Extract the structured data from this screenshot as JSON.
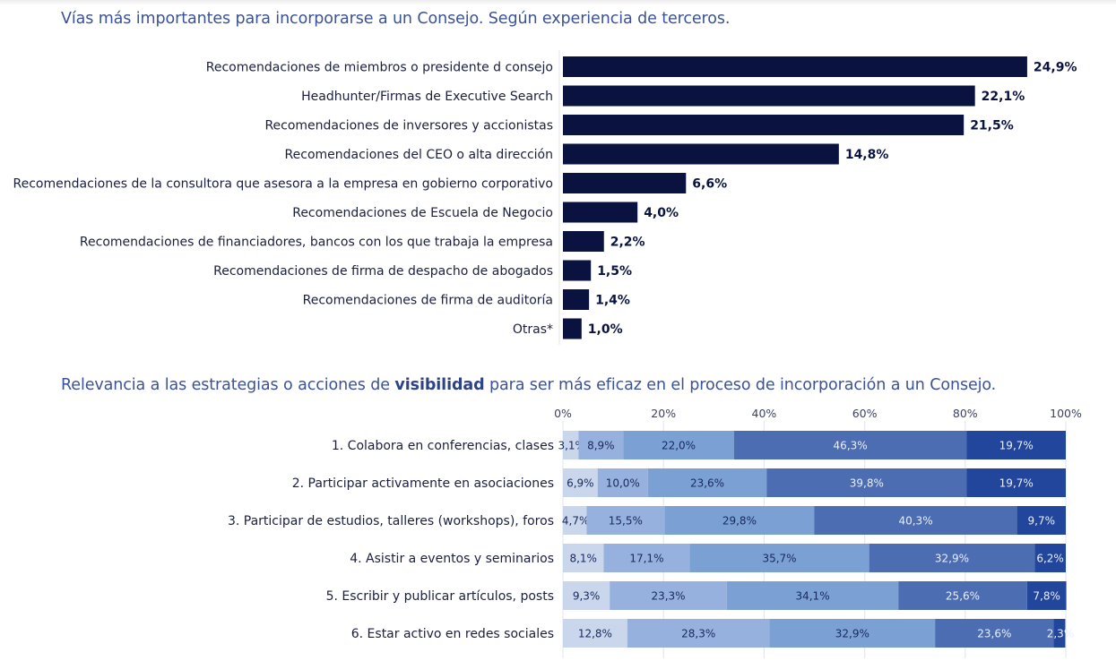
{
  "chart_data": [
    {
      "type": "bar",
      "orientation": "horizontal",
      "title": "Vías más importantes para incorporarse a un Consejo. Según experiencia de terceros.",
      "categories": [
        "Recomendaciones de miembros o presidente d consejo",
        "Headhunter/Firmas de Executive Search",
        "Recomendaciones de inversores y accionistas",
        "Recomendaciones del CEO o alta dirección",
        "Recomendaciones de la consultora que asesora a la empresa en gobierno corporativo",
        "Recomendaciones de Escuela de Negocio",
        "Recomendaciones de financiadores, bancos con los que trabaja la empresa",
        "Recomendaciones de firma de despacho de abogados",
        "Recomendaciones de firma de auditoría",
        "Otras*"
      ],
      "values": [
        24.9,
        22.1,
        21.5,
        14.8,
        6.6,
        4.0,
        2.2,
        1.5,
        1.4,
        1.0
      ],
      "value_labels": [
        "24,9%",
        "22,1%",
        "21,5%",
        "14,8%",
        "6,6%",
        "4,0%",
        "2,2%",
        "1,5%",
        "1,4%",
        "1,0%"
      ],
      "unit": "%",
      "xlim": [
        0,
        25
      ],
      "bar_color": "#0a1340",
      "grid": false
    },
    {
      "type": "bar",
      "orientation": "horizontal",
      "stacked": true,
      "title_parts": [
        "Relevancia a las estrategias o acciones de ",
        "visibilidad",
        " para ser más eficaz en el proceso de incorporación a un Consejo."
      ],
      "categories": [
        "1. Colabora en conferencias, clases",
        "2. Participar activamente en asociaciones",
        "3. Participar de estudios, talleres (workshops), foros",
        "4. Asistir a eventos y seminarios",
        "5. Escribir y publicar artículos, posts",
        "6. Estar activo en redes sociales"
      ],
      "x_ticks": [
        "0%",
        "20%",
        "40%",
        "60%",
        "80%",
        "100%"
      ],
      "xlim": [
        0,
        100
      ],
      "grid": true,
      "series": [
        {
          "color": "#c9d6ec",
          "text_color": "#1a2a5e",
          "values": [
            3.1,
            6.9,
            4.7,
            8.1,
            9.3,
            12.8
          ],
          "labels": [
            "3,1%",
            "6,9%",
            "4,7%",
            "8,1%",
            "9,3%",
            "12,8%"
          ]
        },
        {
          "color": "#96b1dd",
          "text_color": "#1a2a5e",
          "values": [
            8.9,
            10.0,
            15.5,
            17.1,
            23.3,
            28.3
          ],
          "labels": [
            "8,9%",
            "10,0%",
            "15,5%",
            "17,1%",
            "23,3%",
            "28,3%"
          ]
        },
        {
          "color": "#7aa0d4",
          "text_color": "#1a2a5e",
          "values": [
            22.0,
            23.6,
            29.8,
            35.7,
            34.1,
            32.9
          ],
          "labels": [
            "22,0%",
            "23,6%",
            "29,8%",
            "35,7%",
            "34,1%",
            "32,9%"
          ]
        },
        {
          "color": "#4d6db3",
          "text_color": "#e8eefa",
          "values": [
            46.3,
            39.8,
            40.3,
            32.9,
            25.6,
            23.6
          ],
          "labels": [
            "46,3%",
            "39,8%",
            "40,3%",
            "32,9%",
            "25,6%",
            "23,6%"
          ]
        },
        {
          "color": "#22469b",
          "text_color": "#e8eefa",
          "values": [
            19.7,
            19.7,
            9.7,
            6.2,
            7.8,
            2.3
          ],
          "labels": [
            "19,7%",
            "19,7%",
            "9,7%",
            "6,2%",
            "7,8%",
            "2,3%"
          ]
        }
      ]
    }
  ]
}
